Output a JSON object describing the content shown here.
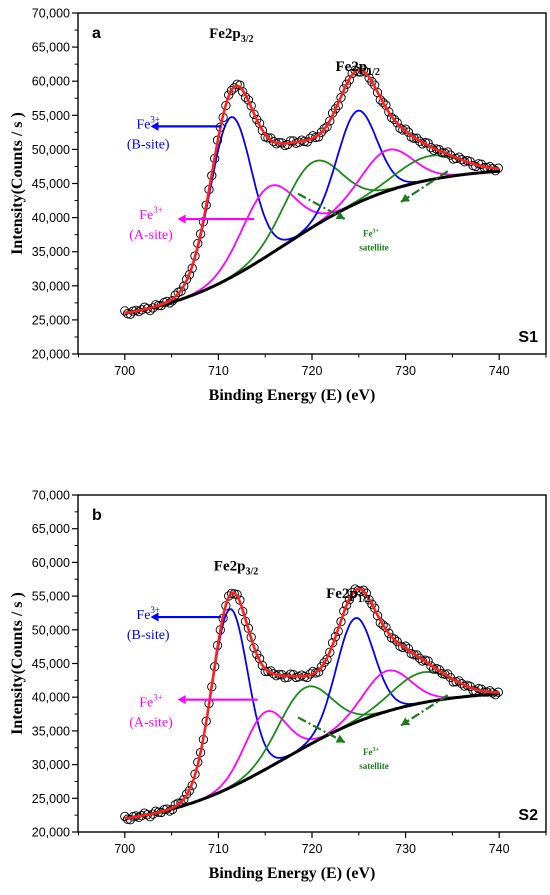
{
  "chart_data": [
    {
      "type": "scatter",
      "panel_label": "a",
      "sample_label": "S1",
      "xlabel": "Binding Energy (E) (eV)",
      "ylabel": "Intensity(Counts / s )",
      "xlim": [
        695,
        745
      ],
      "ylim": [
        20000,
        70000
      ],
      "x_ticks": [
        "700",
        "710",
        "720",
        "730",
        "740"
      ],
      "y_ticks": [
        "20,000",
        "25,000",
        "30,000",
        "35,000",
        "40,000",
        "45,000",
        "50,000",
        "55,000",
        "60,000",
        "65,000",
        "70,000"
      ],
      "peak_labels": [
        {
          "main": "Fe2p",
          "sub": "3/2",
          "x": 712,
          "y": 66300
        },
        {
          "main": "Fe2p",
          "sub": "1/2",
          "x": 725.5,
          "y": 61500
        }
      ],
      "annotations": {
        "b_site": {
          "ion": "Fe",
          "charge": "3+",
          "site": "(B-site)"
        },
        "a_site": {
          "ion": "Fe",
          "charge": "3+",
          "site": "(A-site)"
        },
        "satellite": {
          "ion": "Fe",
          "charge": "3+",
          "label": "satellite"
        }
      },
      "background": {
        "y0": 26000,
        "y1": 46800
      },
      "components": [
        {
          "color": "#0000ff",
          "role": "Fe3+ B-site 2p3/2",
          "center": 711.3,
          "height": 23500,
          "width": 2.2
        },
        {
          "color": "#ff00ff",
          "role": "Fe3+ A-site 2p3/2",
          "center": 715.3,
          "height": 10000,
          "width": 2.8
        },
        {
          "color": "#1a8a1a",
          "role": "satellite 2p3/2",
          "center": 720.0,
          "height": 9500,
          "width": 3.0
        },
        {
          "color": "#0000ff",
          "role": "Fe3+ B-site 2p1/2",
          "center": 724.8,
          "height": 13500,
          "width": 2.1
        },
        {
          "color": "#ff00ff",
          "role": "Fe3+ A-site 2p1/2",
          "center": 728.0,
          "height": 6000,
          "width": 2.7
        },
        {
          "color": "#1a8a1a",
          "role": "satellite 2p1/2",
          "center": 732.5,
          "height": 3500,
          "width": 3.5
        }
      ],
      "colors": {
        "data": "#000000",
        "fit": "#ff2020",
        "background": "#000000"
      }
    },
    {
      "type": "scatter",
      "panel_label": "b",
      "sample_label": "S2",
      "xlabel": "Binding Energy (E) (eV)",
      "ylabel": "Intensity(Counts / s )",
      "xlim": [
        695,
        745
      ],
      "ylim": [
        20000,
        70000
      ],
      "x_ticks": [
        "700",
        "710",
        "720",
        "730",
        "740"
      ],
      "y_ticks": [
        "20,000",
        "25,000",
        "30,000",
        "35,000",
        "40,000",
        "45,000",
        "50,000",
        "55,000",
        "60,000",
        "65,000",
        "70,000"
      ],
      "peak_labels": [
        {
          "main": "Fe2p",
          "sub": "3/2",
          "x": 712.5,
          "y": 58800
        },
        {
          "main": "Fe2p",
          "sub": "1/2",
          "x": 724.5,
          "y": 54700
        }
      ],
      "annotations": {
        "b_site": {
          "ion": "Fe",
          "charge": "3+",
          "site": "(B-site)"
        },
        "a_site": {
          "ion": "Fe",
          "charge": "3+",
          "site": "(A-site)"
        },
        "satellite": {
          "ion": "Fe",
          "charge": "3+",
          "label": "satellite"
        }
      },
      "background": {
        "y0": 22000,
        "y1": 40500
      },
      "components": [
        {
          "color": "#0000ff",
          "role": "Fe3+ B-site 2p3/2",
          "center": 711.2,
          "height": 26500,
          "width": 1.9
        },
        {
          "color": "#ff00ff",
          "role": "Fe3+ A-site 2p3/2",
          "center": 715.0,
          "height": 8500,
          "width": 2.2
        },
        {
          "color": "#1a8a1a",
          "role": "satellite 2p3/2",
          "center": 719.2,
          "height": 8800,
          "width": 2.8
        },
        {
          "color": "#0000ff",
          "role": "Fe3+ B-site 2p1/2",
          "center": 724.6,
          "height": 15500,
          "width": 2.0
        },
        {
          "color": "#ff00ff",
          "role": "Fe3+ A-site 2p1/2",
          "center": 728.0,
          "height": 6000,
          "width": 2.5
        },
        {
          "color": "#1a8a1a",
          "role": "satellite 2p1/2",
          "center": 731.8,
          "height": 4500,
          "width": 3.2
        }
      ],
      "colors": {
        "data": "#000000",
        "fit": "#ff2020",
        "background": "#000000"
      }
    }
  ]
}
